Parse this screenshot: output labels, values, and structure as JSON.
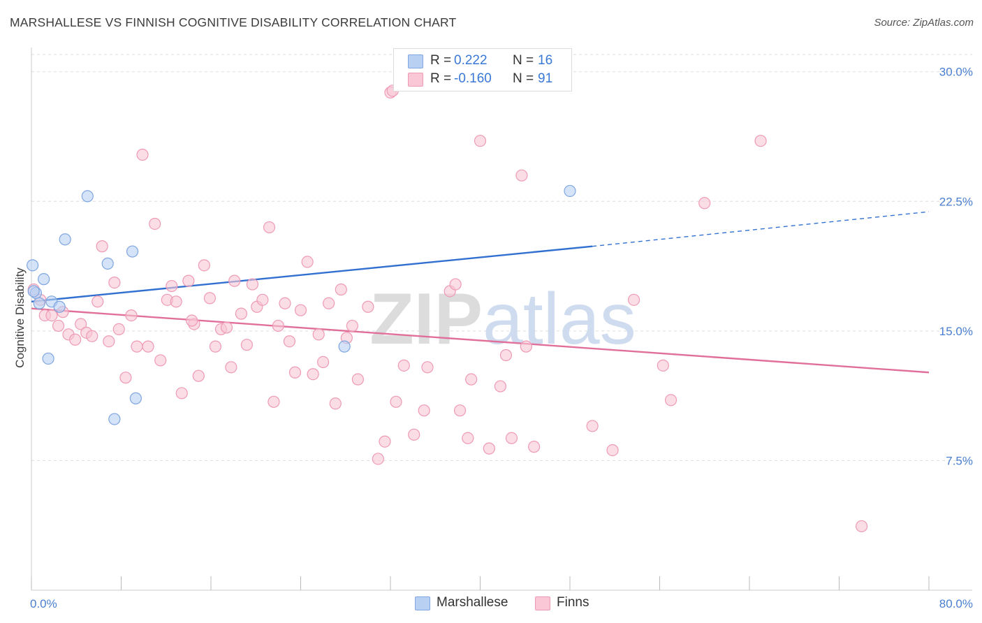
{
  "title": "MARSHALLESE VS FINNISH COGNITIVE DISABILITY CORRELATION CHART",
  "source": "Source: ZipAtlas.com",
  "watermark": "ZIPatlas",
  "legend": {
    "rows": [
      {
        "r_label": "R =",
        "r_value": "0.222",
        "n_label": "N =",
        "n_value": "16"
      },
      {
        "r_label": "R =",
        "r_value": "-0.160",
        "n_label": "N =",
        "n_value": "91"
      }
    ]
  },
  "colors": {
    "blue_fill": "#b8d1f3",
    "blue_stroke": "#7fa6e0",
    "blue_line": "#3170d0",
    "pink_fill": "#f9c7d6",
    "pink_stroke": "#ee9ab5",
    "pink_line": "#e0709a",
    "tick_text": "#4a7fd0"
  },
  "chart_data": {
    "type": "scatter",
    "title": "MARSHALLESE VS FINNISH COGNITIVE DISABILITY CORRELATION CHART",
    "xlabel": "",
    "ylabel": "Cognitive Disability",
    "xlim": [
      0,
      80
    ],
    "ylim": [
      0,
      31
    ],
    "x_tick_labels": [
      "0.0%",
      "80.0%"
    ],
    "x_tick_values": [
      0,
      80
    ],
    "x_minor_ticks": [
      0,
      8,
      16,
      24,
      32,
      40,
      48,
      56,
      64,
      72,
      80
    ],
    "y_ticks": [
      7.5,
      15.0,
      22.5,
      30.0
    ],
    "y_tick_labels": [
      "7.5%",
      "15.0%",
      "22.5%",
      "30.0%"
    ],
    "grid": "horizontal dashed",
    "series": [
      {
        "name": "Marshallese",
        "color": "#b8d1f3",
        "points": [
          [
            0.1,
            18.8
          ],
          [
            0.4,
            17.2
          ],
          [
            0.7,
            16.6
          ],
          [
            1.1,
            18.0
          ],
          [
            1.8,
            16.7
          ],
          [
            2.5,
            16.4
          ],
          [
            1.5,
            13.4
          ],
          [
            3.0,
            20.3
          ],
          [
            5.0,
            22.8
          ],
          [
            6.8,
            18.9
          ],
          [
            9.0,
            19.6
          ],
          [
            9.3,
            11.1
          ],
          [
            7.4,
            9.9
          ],
          [
            27.9,
            14.1
          ],
          [
            48.0,
            23.1
          ],
          [
            0.2,
            17.3
          ]
        ],
        "trend": {
          "x0": 0,
          "y0": 16.7,
          "x1": 50,
          "y1": 19.9,
          "dash_to_x": 80,
          "dash_to_y": 21.9
        }
      },
      {
        "name": "Finns",
        "color": "#f9c7d6",
        "points": [
          [
            0.2,
            17.4
          ],
          [
            0.8,
            16.8
          ],
          [
            1.2,
            15.9
          ],
          [
            1.8,
            15.9
          ],
          [
            2.4,
            15.3
          ],
          [
            2.8,
            16.1
          ],
          [
            3.3,
            14.8
          ],
          [
            3.9,
            14.5
          ],
          [
            4.4,
            15.4
          ],
          [
            4.9,
            14.9
          ],
          [
            5.4,
            14.7
          ],
          [
            5.9,
            16.7
          ],
          [
            6.3,
            19.9
          ],
          [
            6.9,
            14.4
          ],
          [
            7.4,
            17.8
          ],
          [
            7.8,
            15.1
          ],
          [
            8.4,
            12.3
          ],
          [
            8.9,
            15.9
          ],
          [
            9.4,
            14.1
          ],
          [
            9.9,
            25.2
          ],
          [
            10.4,
            14.1
          ],
          [
            11.0,
            21.2
          ],
          [
            11.5,
            13.3
          ],
          [
            12.1,
            16.8
          ],
          [
            12.5,
            17.6
          ],
          [
            12.9,
            16.7
          ],
          [
            13.4,
            11.4
          ],
          [
            14.0,
            17.9
          ],
          [
            14.5,
            15.4
          ],
          [
            14.9,
            12.4
          ],
          [
            15.4,
            18.8
          ],
          [
            15.9,
            16.9
          ],
          [
            16.4,
            14.1
          ],
          [
            16.9,
            15.1
          ],
          [
            17.4,
            15.2
          ],
          [
            17.8,
            12.9
          ],
          [
            18.1,
            17.9
          ],
          [
            18.7,
            16.0
          ],
          [
            19.2,
            14.2
          ],
          [
            19.7,
            17.7
          ],
          [
            20.1,
            16.4
          ],
          [
            20.6,
            16.8
          ],
          [
            21.2,
            21.0
          ],
          [
            21.6,
            10.9
          ],
          [
            22.0,
            15.3
          ],
          [
            22.6,
            16.6
          ],
          [
            23.0,
            14.4
          ],
          [
            23.5,
            12.6
          ],
          [
            24.0,
            16.2
          ],
          [
            24.6,
            19.0
          ],
          [
            25.1,
            12.5
          ],
          [
            25.6,
            14.8
          ],
          [
            26.0,
            13.2
          ],
          [
            26.5,
            16.6
          ],
          [
            27.1,
            10.8
          ],
          [
            27.6,
            17.4
          ],
          [
            28.1,
            14.6
          ],
          [
            28.6,
            15.3
          ],
          [
            29.1,
            12.2
          ],
          [
            30.0,
            16.4
          ],
          [
            30.9,
            7.6
          ],
          [
            31.5,
            8.6
          ],
          [
            32.0,
            28.8
          ],
          [
            32.5,
            10.9
          ],
          [
            33.2,
            13.0
          ],
          [
            34.1,
            9.0
          ],
          [
            35.0,
            10.4
          ],
          [
            35.3,
            12.9
          ],
          [
            37.3,
            17.3
          ],
          [
            37.8,
            17.7
          ],
          [
            38.2,
            10.4
          ],
          [
            38.9,
            8.8
          ],
          [
            39.2,
            12.2
          ],
          [
            40.0,
            26.0
          ],
          [
            40.8,
            8.2
          ],
          [
            41.8,
            11.8
          ],
          [
            42.3,
            13.6
          ],
          [
            42.8,
            8.8
          ],
          [
            43.7,
            24.0
          ],
          [
            44.1,
            14.1
          ],
          [
            44.8,
            8.3
          ],
          [
            50.0,
            9.5
          ],
          [
            51.8,
            8.1
          ],
          [
            53.7,
            16.8
          ],
          [
            56.3,
            13.0
          ],
          [
            57.0,
            11.0
          ],
          [
            60.0,
            22.4
          ],
          [
            65.0,
            26.0
          ],
          [
            74.0,
            3.7
          ],
          [
            32.2,
            28.9
          ],
          [
            14.3,
            15.6
          ]
        ],
        "trend": {
          "x0": 0,
          "y0": 16.3,
          "x1": 80,
          "y1": 12.6
        }
      }
    ]
  }
}
